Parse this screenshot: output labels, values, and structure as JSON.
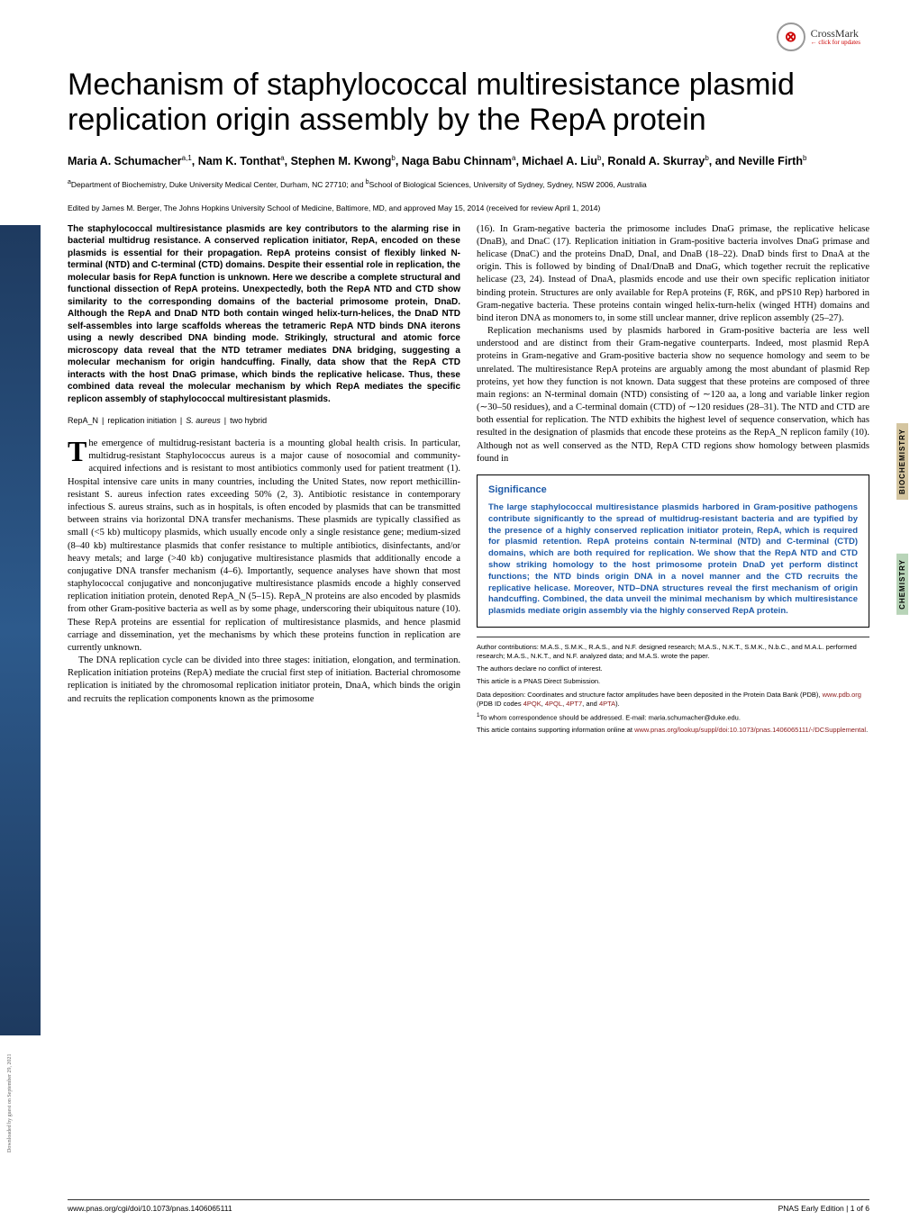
{
  "crossmark": {
    "label": "CrossMark",
    "sub": "← click for updates"
  },
  "title": "Mechanism of staphylococcal multiresistance plasmid replication origin assembly by the RepA protein",
  "authors_html": "Maria A. Schumacher<sup>a,1</sup>, Nam K. Tonthat<sup>a</sup>, Stephen M. Kwong<sup>b</sup>, Naga Babu Chinnam<sup>a</sup>, Michael A. Liu<sup>b</sup>, Ronald A. Skurray<sup>b</sup>, and Neville Firth<sup>b</sup>",
  "affiliations_html": "<sup>a</sup>Department of Biochemistry, Duke University Medical Center, Durham, NC 27710; and <sup>b</sup>School of Biological Sciences, University of Sydney, Sydney, NSW 2006, Australia",
  "edited": "Edited by James M. Berger, The Johns Hopkins University School of Medicine, Baltimore, MD, and approved May 15, 2014 (received for review April 1, 2014)",
  "abstract": "The staphylococcal multiresistance plasmids are key contributors to the alarming rise in bacterial multidrug resistance. A conserved replication initiator, RepA, encoded on these plasmids is essential for their propagation. RepA proteins consist of flexibly linked N-terminal (NTD) and C-terminal (CTD) domains. Despite their essential role in replication, the molecular basis for RepA function is unknown. Here we describe a complete structural and functional dissection of RepA proteins. Unexpectedly, both the RepA NTD and CTD show similarity to the corresponding domains of the bacterial primosome protein, DnaD. Although the RepA and DnaD NTD both contain winged helix-turn-helices, the DnaD NTD self-assembles into large scaffolds whereas the tetrameric RepA NTD binds DNA iterons using a newly described DNA binding mode. Strikingly, structural and atomic force microscopy data reveal that the NTD tetramer mediates DNA bridging, suggesting a molecular mechanism for origin handcuffing. Finally, data show that the RepA CTD interacts with the host DnaG primase, which binds the replicative helicase. Thus, these combined data reveal the molecular mechanism by which RepA mediates the specific replicon assembly of staphylococcal multiresistant plasmids.",
  "keywords": "RepA_N | replication initiation | S. aureus | two hybrid",
  "col1_p1": "he emergence of multidrug-resistant bacteria is a mounting global health crisis. In particular, multidrug-resistant Staphylococcus aureus is a major cause of nosocomial and community-acquired infections and is resistant to most antibiotics commonly used for patient treatment (1). Hospital intensive care units in many countries, including the United States, now report methicillin-resistant S. aureus infection rates exceeding 50% (2, 3). Antibiotic resistance in contemporary infectious S. aureus strains, such as in hospitals, is often encoded by plasmids that can be transmitted between strains via horizontal DNA transfer mechanisms. These plasmids are typically classified as small (<5 kb) multicopy plasmids, which usually encode only a single resistance gene; medium-sized (8–40 kb) multirestance plasmids that confer resistance to multiple antibiotics, disinfectants, and/or heavy metals; and large (>40 kb) conjugative multiresistance plasmids that additionally encode a conjugative DNA transfer mechanism (4–6). Importantly, sequence analyses have shown that most staphylococcal conjugative and nonconjugative multiresistance plasmids encode a highly conserved replication initiation protein, denoted RepA_N (5–15). RepA_N proteins are also encoded by plasmids from other Gram-positive bacteria as well as by some phage, underscoring their ubiquitous nature (10). These RepA proteins are essential for replication of multiresistance plasmids, and hence plasmid carriage and dissemination, yet the mechanisms by which these proteins function in replication are currently unknown.",
  "col1_p2": "The DNA replication cycle can be divided into three stages: initiation, elongation, and termination. Replication initiation proteins (RepA) mediate the crucial first step of initiation. Bacterial chromosome replication is initiated by the chromosomal replication initiator protein, DnaA, which binds the origin and recruits the replication components known as the primosome",
  "col2_p1": "(16). In Gram-negative bacteria the primosome includes DnaG primase, the replicative helicase (DnaB), and DnaC (17). Replication initiation in Gram-positive bacteria involves DnaG primase and helicase (DnaC) and the proteins DnaD, DnaI, and DnaB (18–22). DnaD binds first to DnaA at the origin. This is followed by binding of DnaI/DnaB and DnaG, which together recruit the replicative helicase (23, 24). Instead of DnaA, plasmids encode and use their own specific replication initiator binding protein. Structures are only available for RepA proteins (F, R6K, and pPS10 Rep) harbored in Gram-negative bacteria. These proteins contain winged helix-turn-helix (winged HTH) domains and bind iteron DNA as monomers to, in some still unclear manner, drive replicon assembly (25–27).",
  "col2_p2": "Replication mechanisms used by plasmids harbored in Gram-positive bacteria are less well understood and are distinct from their Gram-negative counterparts. Indeed, most plasmid RepA proteins in Gram-negative and Gram-positive bacteria show no sequence homology and seem to be unrelated. The multiresistance RepA proteins are arguably among the most abundant of plasmid Rep proteins, yet how they function is not known. Data suggest that these proteins are composed of three main regions: an N-terminal domain (NTD) consisting of ∼120 aa, a long and variable linker region (∼30–50 residues), and a C-terminal domain (CTD) of ∼120 residues (28–31). The NTD and CTD are both essential for replication. The NTD exhibits the highest level of sequence conservation, which has resulted in the designation of plasmids that encode these proteins as the RepA_N replicon family (10). Although not as well conserved as the NTD, RepA CTD regions show homology between plasmids found in",
  "sig_title": "Significance",
  "sig_body": "The large staphylococcal multiresistance plasmids harbored in Gram-positive pathogens contribute significantly to the spread of multidrug-resistant bacteria and are typified by the presence of a highly conserved replication initiator protein, RepA, which is required for plasmid retention. RepA proteins contain N-terminal (NTD) and C-terminal (CTD) domains, which are both required for replication. We show that the RepA NTD and CTD show striking homology to the host primosome protein DnaD yet perform distinct functions; the NTD binds origin DNA in a novel manner and the CTD recruits the replicative helicase. Moreover, NTD–DNA structures reveal the first mechanism of origin handcuffing. Combined, the data unveil the minimal mechanism by which multiresistance plasmids mediate origin assembly via the highly conserved RepA protein.",
  "fn_contrib": "Author contributions: M.A.S., S.M.K., R.A.S., and N.F. designed research; M.A.S., N.K.T., S.M.K., N.b.C., and M.A.L. performed research; M.A.S., N.K.T., and N.F. analyzed data; and M.A.S. wrote the paper.",
  "fn_conflict": "The authors declare no conflict of interest.",
  "fn_direct": "This article is a PNAS Direct Submission.",
  "fn_data": "Data deposition: Coordinates and structure factor amplitudes have been deposited in the Protein Data Bank (PDB), ",
  "fn_data_url": "www.pdb.org",
  "fn_data_codes": " (PDB ID codes 4PQK, 4PQL, 4PT7, and 4PTA).",
  "fn_corr": "To whom correspondence should be addressed. E-mail: maria.schumacher@duke.edu.",
  "fn_supp": "This article contains supporting information online at ",
  "fn_supp_url": "www.pnas.org/lookup/suppl/doi:10.1073/pnas.1406065111/-/DCSupplemental",
  "footer_left": "www.pnas.org/cgi/doi/10.1073/pnas.1406065111",
  "footer_right": "PNAS Early Edition | 1 of 6",
  "side_bio": "BIOCHEMISTRY",
  "side_chem": "CHEMISTRY",
  "download_note": "Downloaded by guest on September 29, 2021"
}
